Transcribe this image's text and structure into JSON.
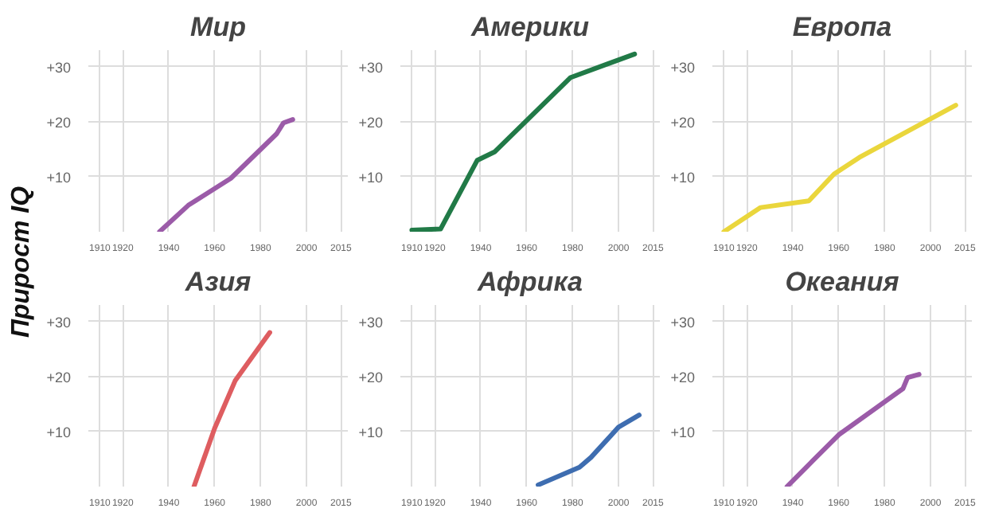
{
  "chart_data": [
    {
      "type": "line",
      "title": "Мир",
      "ylabel": "Прирост IQ",
      "x": [
        1936,
        1948.5,
        1967,
        1987,
        1990,
        1994
      ],
      "series": [
        {
          "color": "#9b5ba8",
          "values": [
            0,
            4.8,
            9.7,
            17.8,
            19.8,
            20.4
          ]
        }
      ],
      "xlim": [
        1905,
        2018
      ],
      "ylim": [
        0,
        33
      ],
      "xticks": [
        1910,
        1920,
        1940,
        1960,
        1980,
        2000,
        2015
      ],
      "yticks": [
        {
          "value": 10,
          "label": "+10"
        },
        {
          "value": 20,
          "label": "+20"
        },
        {
          "value": 30,
          "label": "+30"
        }
      ],
      "grid": true
    },
    {
      "type": "line",
      "title": "Америки",
      "x": [
        1910,
        1922.5,
        1938.5,
        1946,
        1979,
        2007
      ],
      "series": [
        {
          "color": "#217a47",
          "values": [
            0.3,
            0.5,
            13,
            14.5,
            28,
            32.3
          ]
        }
      ],
      "xlim": [
        1905,
        2018
      ],
      "ylim": [
        0,
        33
      ],
      "xticks": [
        1910,
        1920,
        1940,
        1960,
        1980,
        2000,
        2015
      ],
      "yticks": [
        {
          "value": 10,
          "label": "+10"
        },
        {
          "value": 20,
          "label": "+20"
        },
        {
          "value": 30,
          "label": "+30"
        }
      ],
      "grid": true
    },
    {
      "type": "line",
      "title": "Европа",
      "x": [
        1910,
        1926,
        1947,
        1958,
        1969,
        2011
      ],
      "series": [
        {
          "color": "#ead63c",
          "values": [
            0,
            4.4,
            5.6,
            10.5,
            13.5,
            23
          ]
        }
      ],
      "xlim": [
        1905,
        2018
      ],
      "ylim": [
        0,
        33
      ],
      "xticks": [
        1910,
        1920,
        1940,
        1960,
        1980,
        2000,
        2015
      ],
      "yticks": [
        {
          "value": 10,
          "label": "+10"
        },
        {
          "value": 20,
          "label": "+20"
        },
        {
          "value": 30,
          "label": "+30"
        }
      ],
      "grid": true
    },
    {
      "type": "line",
      "title": "Азия",
      "x": [
        1951,
        1960,
        1969,
        1984
      ],
      "series": [
        {
          "color": "#de5d60",
          "values": [
            0,
            10.6,
            19.3,
            28
          ]
        }
      ],
      "xlim": [
        1905,
        2018
      ],
      "ylim": [
        0,
        33
      ],
      "xticks": [
        1910,
        1920,
        1940,
        1960,
        1980,
        2000,
        2015
      ],
      "yticks": [
        {
          "value": 10,
          "label": "+10"
        },
        {
          "value": 20,
          "label": "+20"
        },
        {
          "value": 30,
          "label": "+30"
        }
      ],
      "grid": true
    },
    {
      "type": "line",
      "title": "Африка",
      "x": [
        1965,
        1983,
        1988,
        2000,
        2009
      ],
      "series": [
        {
          "color": "#3e6db0",
          "values": [
            0.3,
            3.5,
            5.3,
            10.8,
            13
          ]
        }
      ],
      "xlim": [
        1905,
        2018
      ],
      "ylim": [
        0,
        33
      ],
      "xticks": [
        1910,
        1920,
        1940,
        1960,
        1980,
        2000,
        2015
      ],
      "yticks": [
        {
          "value": 10,
          "label": "+10"
        },
        {
          "value": 20,
          "label": "+20"
        },
        {
          "value": 30,
          "label": "+30"
        }
      ],
      "grid": true
    },
    {
      "type": "line",
      "title": "Океания",
      "x": [
        1937.5,
        1948.5,
        1960,
        1988,
        1990,
        1995
      ],
      "series": [
        {
          "color": "#9b5ba8",
          "values": [
            0,
            4.6,
            9.4,
            17.8,
            19.8,
            20.4
          ]
        }
      ],
      "xlim": [
        1905,
        2018
      ],
      "ylim": [
        0,
        33
      ],
      "xticks": [
        1910,
        1920,
        1940,
        1960,
        1980,
        2000,
        2015
      ],
      "yticks": [
        {
          "value": 10,
          "label": "+10"
        },
        {
          "value": 20,
          "label": "+20"
        },
        {
          "value": 30,
          "label": "+30"
        }
      ],
      "grid": true
    }
  ]
}
